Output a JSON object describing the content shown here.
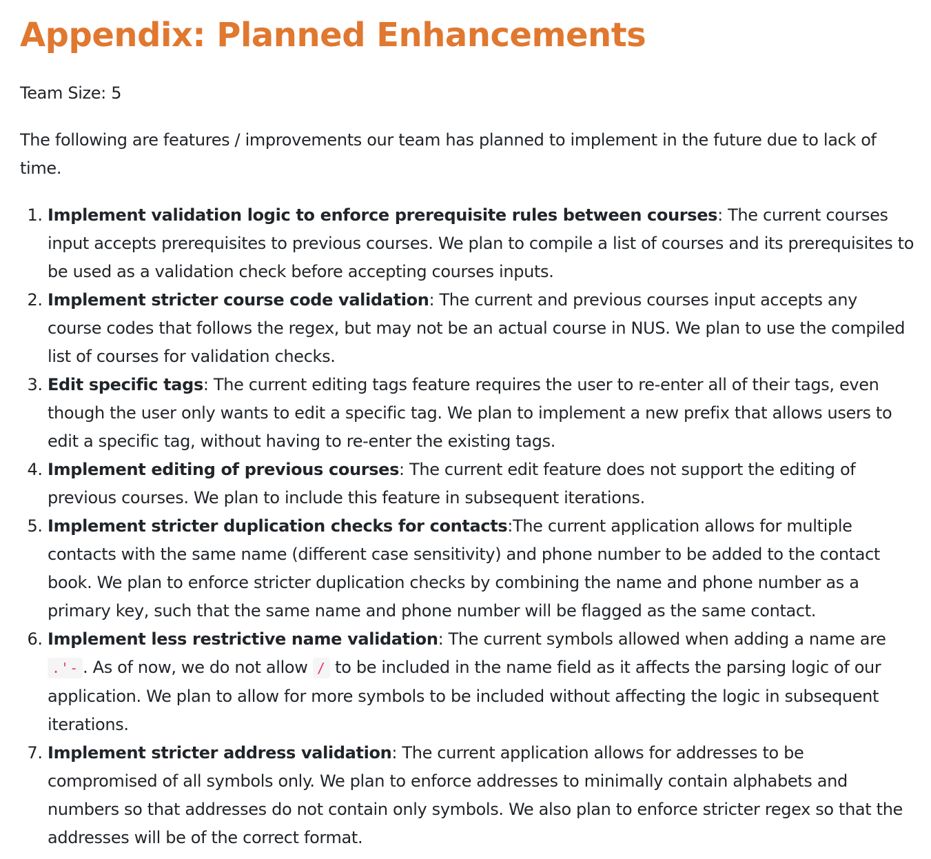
{
  "title": "Appendix: Planned Enhancements",
  "team_size": "Team Size: 5",
  "intro": "The following are features / improvements our team has planned to implement in the future due to lack of time.",
  "items": [
    {
      "heading": "Implement validation logic to enforce prerequisite rules between courses",
      "text": ": The current courses input accepts prerequisites to previous courses. We plan to compile a list of courses and its prerequisites to be used as a validation check before accepting courses inputs."
    },
    {
      "heading": "Implement stricter course code validation",
      "text": ": The current and previous courses input accepts any course codes that follows the regex, but may not be an actual course in NUS. We plan to use the compiled list of courses for validation checks."
    },
    {
      "heading": "Edit specific tags",
      "text": ": The current editing tags feature requires the user to re-enter all of their tags, even though the user only wants to edit a specific tag. We plan to implement a new prefix that allows users to edit a specific tag, without having to re-enter the existing tags."
    },
    {
      "heading": "Implement editing of previous courses",
      "text": ": The current edit feature does not support the editing of previous courses. We plan to include this feature in subsequent iterations."
    },
    {
      "heading": "Implement stricter duplication checks for contacts",
      "text": ":The current application allows for multiple contacts with the same name (different case sensitivity) and phone number to be added to the contact book. We plan to enforce stricter duplication checks by combining the name and phone number as a primary key, such that the same name and phone number will be flagged as the same contact."
    },
    {
      "heading": "Implement less restrictive name validation",
      "text_a": ": The current symbols allowed when adding a name are ",
      "code_a": ".'-",
      "text_b": ". As of now, we do not allow ",
      "code_b": "/",
      "text_c": " to be included in the name field as it affects the parsing logic of our application. We plan to allow for more symbols to be included without affecting the logic in subsequent iterations."
    },
    {
      "heading": "Implement stricter address validation",
      "text": ": The current application allows for addresses to be compromised of all symbols only. We plan to enforce addresses to minimally contain alphabets and numbers so that addresses do not contain only symbols. We also plan to enforce stricter regex so that the addresses will be of the correct format."
    }
  ]
}
